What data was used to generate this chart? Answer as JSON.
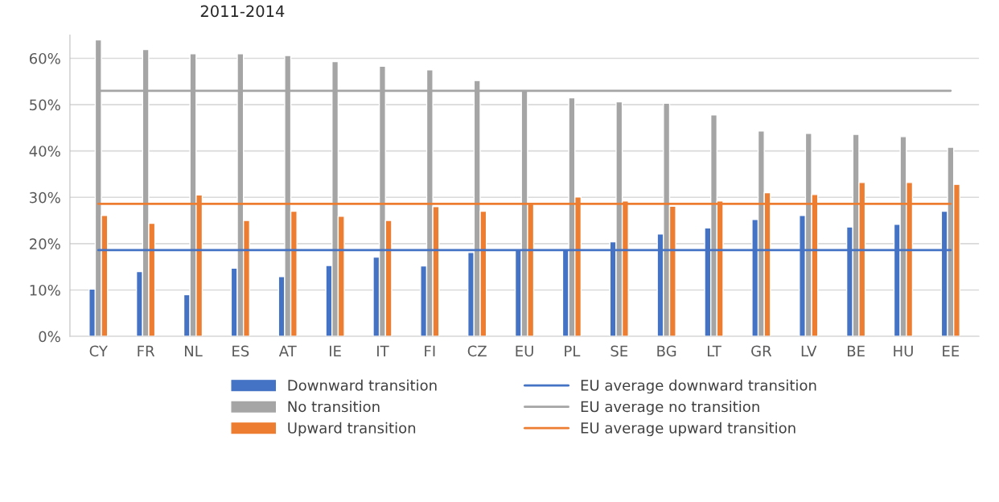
{
  "chart_data": {
    "type": "bar",
    "title": "2011-2014",
    "categories": [
      "CY",
      "FR",
      "NL",
      "ES",
      "AT",
      "IE",
      "IT",
      "FI",
      "CZ",
      "EU",
      "PL",
      "SE",
      "BG",
      "LT",
      "GR",
      "LV",
      "BE",
      "HU",
      "EE"
    ],
    "series": [
      {
        "name": "Downward transition",
        "color": "#4472c4",
        "values": [
          10.2,
          14.0,
          9.0,
          14.7,
          12.9,
          15.3,
          17.1,
          15.2,
          18.1,
          18.8,
          18.8,
          20.4,
          22.1,
          23.4,
          25.2,
          26.1,
          23.6,
          24.2,
          27.0
        ]
      },
      {
        "name": "No transition",
        "color": "#a5a5a5",
        "values": [
          64.0,
          61.9,
          61.0,
          61.0,
          60.6,
          59.3,
          58.3,
          57.5,
          55.2,
          53.0,
          51.5,
          50.6,
          50.3,
          47.8,
          44.3,
          43.8,
          43.6,
          43.1,
          40.8
        ]
      },
      {
        "name": "Upward transition",
        "color": "#ed7d31",
        "values": [
          26.1,
          24.4,
          30.5,
          25.0,
          27.0,
          25.9,
          25.0,
          28.0,
          27.0,
          28.6,
          30.1,
          29.2,
          28.1,
          29.2,
          31.0,
          30.6,
          33.2,
          33.2,
          32.8
        ]
      },
      {
        "name": "EU average downward transition",
        "type": "line",
        "color": "#4472c4",
        "values": [
          18.6,
          18.6,
          18.6,
          18.6,
          18.6,
          18.6,
          18.6,
          18.6,
          18.6,
          18.6,
          18.6,
          18.6,
          18.6,
          18.6,
          18.6,
          18.6,
          18.6,
          18.6,
          18.6
        ]
      },
      {
        "name": "EU average no transition",
        "type": "line",
        "color": "#a5a5a5",
        "values": [
          53.0,
          53.0,
          53.0,
          53.0,
          53.0,
          53.0,
          53.0,
          53.0,
          53.0,
          53.0,
          53.0,
          53.0,
          53.0,
          53.0,
          53.0,
          53.0,
          53.0,
          53.0,
          53.0
        ]
      },
      {
        "name": "EU average upward transition",
        "type": "line",
        "color": "#ed7d31",
        "values": [
          28.6,
          28.6,
          28.6,
          28.6,
          28.6,
          28.6,
          28.6,
          28.6,
          28.6,
          28.6,
          28.6,
          28.6,
          28.6,
          28.6,
          28.6,
          28.6,
          28.6,
          28.6,
          28.6
        ]
      }
    ],
    "ylim": [
      0,
      65
    ],
    "yticks": [
      {
        "value": 0,
        "label": "0%"
      },
      {
        "value": 10,
        "label": "10%"
      },
      {
        "value": 20,
        "label": "20%"
      },
      {
        "value": 30,
        "label": "30%"
      },
      {
        "value": 40,
        "label": "40%"
      },
      {
        "value": 50,
        "label": "50%"
      },
      {
        "value": 60,
        "label": "60%"
      }
    ],
    "grid": "y",
    "legend": "bottom"
  }
}
